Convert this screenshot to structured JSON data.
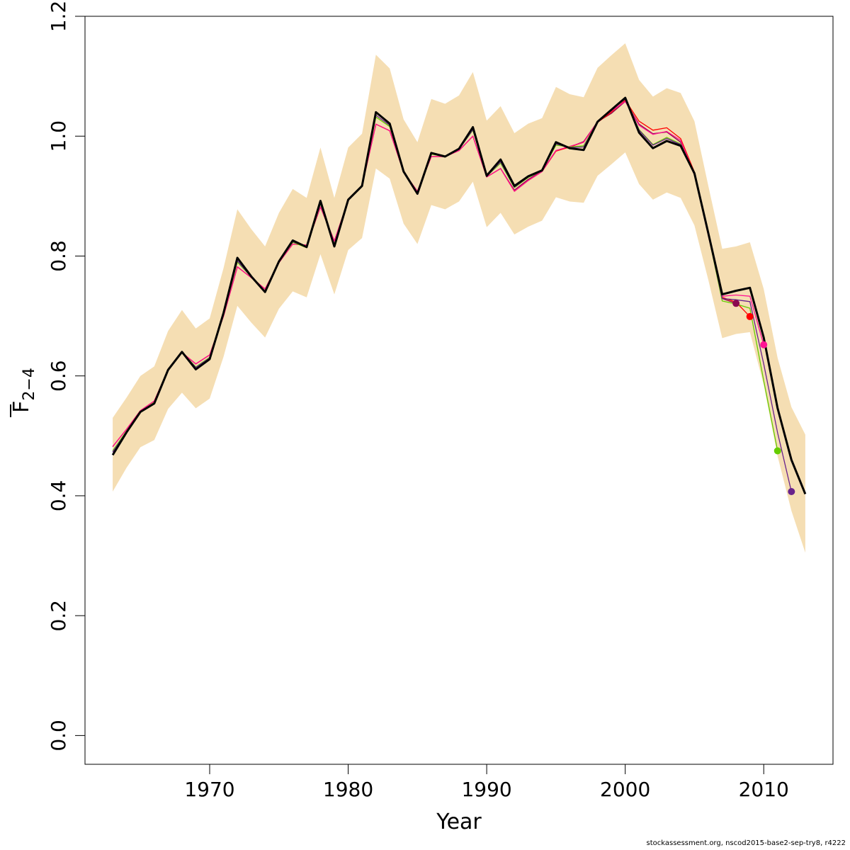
{
  "chart_data": {
    "type": "line",
    "xlabel": "Year",
    "ylabel_main": "F",
    "ylabel_sub": "2−4",
    "xlim": [
      1961,
      2015
    ],
    "ylim": [
      -0.048,
      1.2
    ],
    "xticks": [
      1970,
      1980,
      1990,
      2000,
      2010
    ],
    "xtick_labels": [
      "1970",
      "1980",
      "1990",
      "2000",
      "2010"
    ],
    "yticks": [
      0.0,
      0.2,
      0.4,
      0.6,
      0.8,
      1.0,
      1.2
    ],
    "ytick_labels": [
      "0.0",
      "0.2",
      "0.4",
      "0.6",
      "0.8",
      "1.0",
      "1.2"
    ],
    "grid": false,
    "band_color": "#F5DEB3",
    "main_color": "#000000",
    "years": [
      1963,
      1964,
      1965,
      1966,
      1967,
      1968,
      1969,
      1970,
      1971,
      1972,
      1973,
      1974,
      1975,
      1976,
      1977,
      1978,
      1979,
      1980,
      1981,
      1982,
      1983,
      1984,
      1985,
      1986,
      1987,
      1988,
      1989,
      1990,
      1991,
      1992,
      1993,
      1994,
      1995,
      1996,
      1997,
      1998,
      1999,
      2000,
      2001,
      2002,
      2003,
      2004,
      2005,
      2006,
      2007,
      2008,
      2009,
      2010,
      2011,
      2012,
      2013
    ],
    "estimate": [
      0.468,
      0.506,
      0.54,
      0.554,
      0.61,
      0.64,
      0.611,
      0.628,
      0.705,
      0.797,
      0.766,
      0.74,
      0.791,
      0.826,
      0.815,
      0.892,
      0.816,
      0.894,
      0.917,
      1.04,
      1.021,
      0.941,
      0.904,
      0.972,
      0.966,
      0.979,
      1.015,
      0.934,
      0.961,
      0.917,
      0.933,
      0.943,
      0.99,
      0.98,
      0.977,
      1.024,
      1.044,
      1.064,
      1.006,
      0.98,
      0.992,
      0.984,
      0.938,
      0.838,
      0.736,
      0.742,
      0.747,
      0.664,
      0.546,
      0.46,
      0.403
    ],
    "upper": [
      0.53,
      0.564,
      0.6,
      0.616,
      0.675,
      0.71,
      0.679,
      0.696,
      0.78,
      0.878,
      0.845,
      0.816,
      0.872,
      0.912,
      0.897,
      0.981,
      0.897,
      0.981,
      1.004,
      1.136,
      1.113,
      1.028,
      0.99,
      1.062,
      1.054,
      1.068,
      1.107,
      1.026,
      1.05,
      1.005,
      1.021,
      1.03,
      1.082,
      1.07,
      1.065,
      1.114,
      1.135,
      1.155,
      1.094,
      1.066,
      1.08,
      1.072,
      1.025,
      0.917,
      0.812,
      0.816,
      0.823,
      0.745,
      0.63,
      0.548,
      0.502
    ],
    "lower": [
      0.407,
      0.447,
      0.481,
      0.493,
      0.545,
      0.572,
      0.546,
      0.562,
      0.632,
      0.717,
      0.689,
      0.664,
      0.712,
      0.741,
      0.731,
      0.803,
      0.736,
      0.81,
      0.83,
      0.946,
      0.929,
      0.854,
      0.82,
      0.885,
      0.878,
      0.891,
      0.924,
      0.848,
      0.872,
      0.836,
      0.849,
      0.859,
      0.898,
      0.891,
      0.889,
      0.934,
      0.953,
      0.973,
      0.92,
      0.894,
      0.906,
      0.897,
      0.851,
      0.76,
      0.663,
      0.67,
      0.673,
      0.585,
      0.466,
      0.375,
      0.305
    ],
    "retro": [
      {
        "color": "#8B0A50",
        "end_year": 2008,
        "values": [
          0.482,
          0.511,
          0.542,
          0.558,
          0.61,
          0.639,
          0.62,
          0.635,
          0.7,
          0.782,
          0.764,
          0.745,
          0.789,
          0.82,
          0.818,
          0.882,
          0.825,
          0.893,
          0.917,
          1.02,
          1.009,
          0.94,
          0.908,
          0.966,
          0.966,
          0.976,
          1.0,
          0.932,
          0.946,
          0.91,
          0.928,
          0.942,
          0.976,
          0.982,
          0.991,
          1.024,
          1.038,
          1.058,
          1.02,
          1.004,
          1.007,
          0.99,
          0.935,
          0.835,
          0.729,
          0.721
        ]
      },
      {
        "color": "#FF0000",
        "end_year": 2009,
        "values": [
          0.482,
          0.511,
          0.542,
          0.558,
          0.61,
          0.639,
          0.62,
          0.635,
          0.7,
          0.782,
          0.764,
          0.745,
          0.789,
          0.82,
          0.818,
          0.882,
          0.825,
          0.893,
          0.917,
          1.02,
          1.009,
          0.94,
          0.908,
          0.966,
          0.966,
          0.976,
          1.0,
          0.932,
          0.946,
          0.908,
          0.926,
          0.941,
          0.975,
          0.982,
          0.99,
          1.023,
          1.04,
          1.06,
          1.025,
          1.01,
          1.014,
          0.996,
          0.94,
          0.838,
          0.731,
          0.723,
          0.699
        ]
      },
      {
        "color": "#FF1493",
        "end_year": 2010,
        "values": [
          0.482,
          0.511,
          0.542,
          0.558,
          0.61,
          0.639,
          0.62,
          0.635,
          0.7,
          0.782,
          0.764,
          0.745,
          0.789,
          0.82,
          0.818,
          0.882,
          0.825,
          0.893,
          0.917,
          1.02,
          1.009,
          0.94,
          0.908,
          0.966,
          0.966,
          0.976,
          1.0,
          0.932,
          0.946,
          0.908,
          0.926,
          0.941,
          0.976,
          0.983,
          0.99,
          1.024,
          1.042,
          1.058,
          1.018,
          1.003,
          1.008,
          0.993,
          0.937,
          0.834,
          0.733,
          0.735,
          0.733,
          0.652
        ]
      },
      {
        "color": "#66CD00",
        "end_year": 2011,
        "values": [
          0.475,
          0.508,
          0.54,
          0.556,
          0.61,
          0.64,
          0.615,
          0.631,
          0.703,
          0.79,
          0.765,
          0.741,
          0.79,
          0.823,
          0.814,
          0.887,
          0.819,
          0.893,
          0.917,
          1.032,
          1.016,
          0.941,
          0.905,
          0.97,
          0.966,
          0.978,
          1.01,
          0.933,
          0.955,
          0.914,
          0.931,
          0.942,
          0.985,
          0.982,
          0.984,
          1.024,
          1.045,
          1.062,
          1.011,
          0.986,
          0.998,
          0.987,
          0.938,
          0.836,
          0.725,
          0.72,
          0.713,
          0.592,
          0.475
        ]
      },
      {
        "color": "#68228B",
        "end_year": 2012,
        "values": [
          0.473,
          0.507,
          0.54,
          0.555,
          0.61,
          0.64,
          0.614,
          0.63,
          0.704,
          0.792,
          0.765,
          0.74,
          0.79,
          0.824,
          0.815,
          0.888,
          0.818,
          0.893,
          0.917,
          1.035,
          1.018,
          0.941,
          0.905,
          0.971,
          0.966,
          0.978,
          1.011,
          0.933,
          0.957,
          0.915,
          0.932,
          0.942,
          0.987,
          0.981,
          0.982,
          1.024,
          1.044,
          1.062,
          1.01,
          0.985,
          0.996,
          0.986,
          0.938,
          0.836,
          0.729,
          0.727,
          0.724,
          0.62,
          0.505,
          0.407
        ]
      }
    ]
  },
  "footer": "stockassessment.org, nscod2015-base2-sep-try8, r4222"
}
